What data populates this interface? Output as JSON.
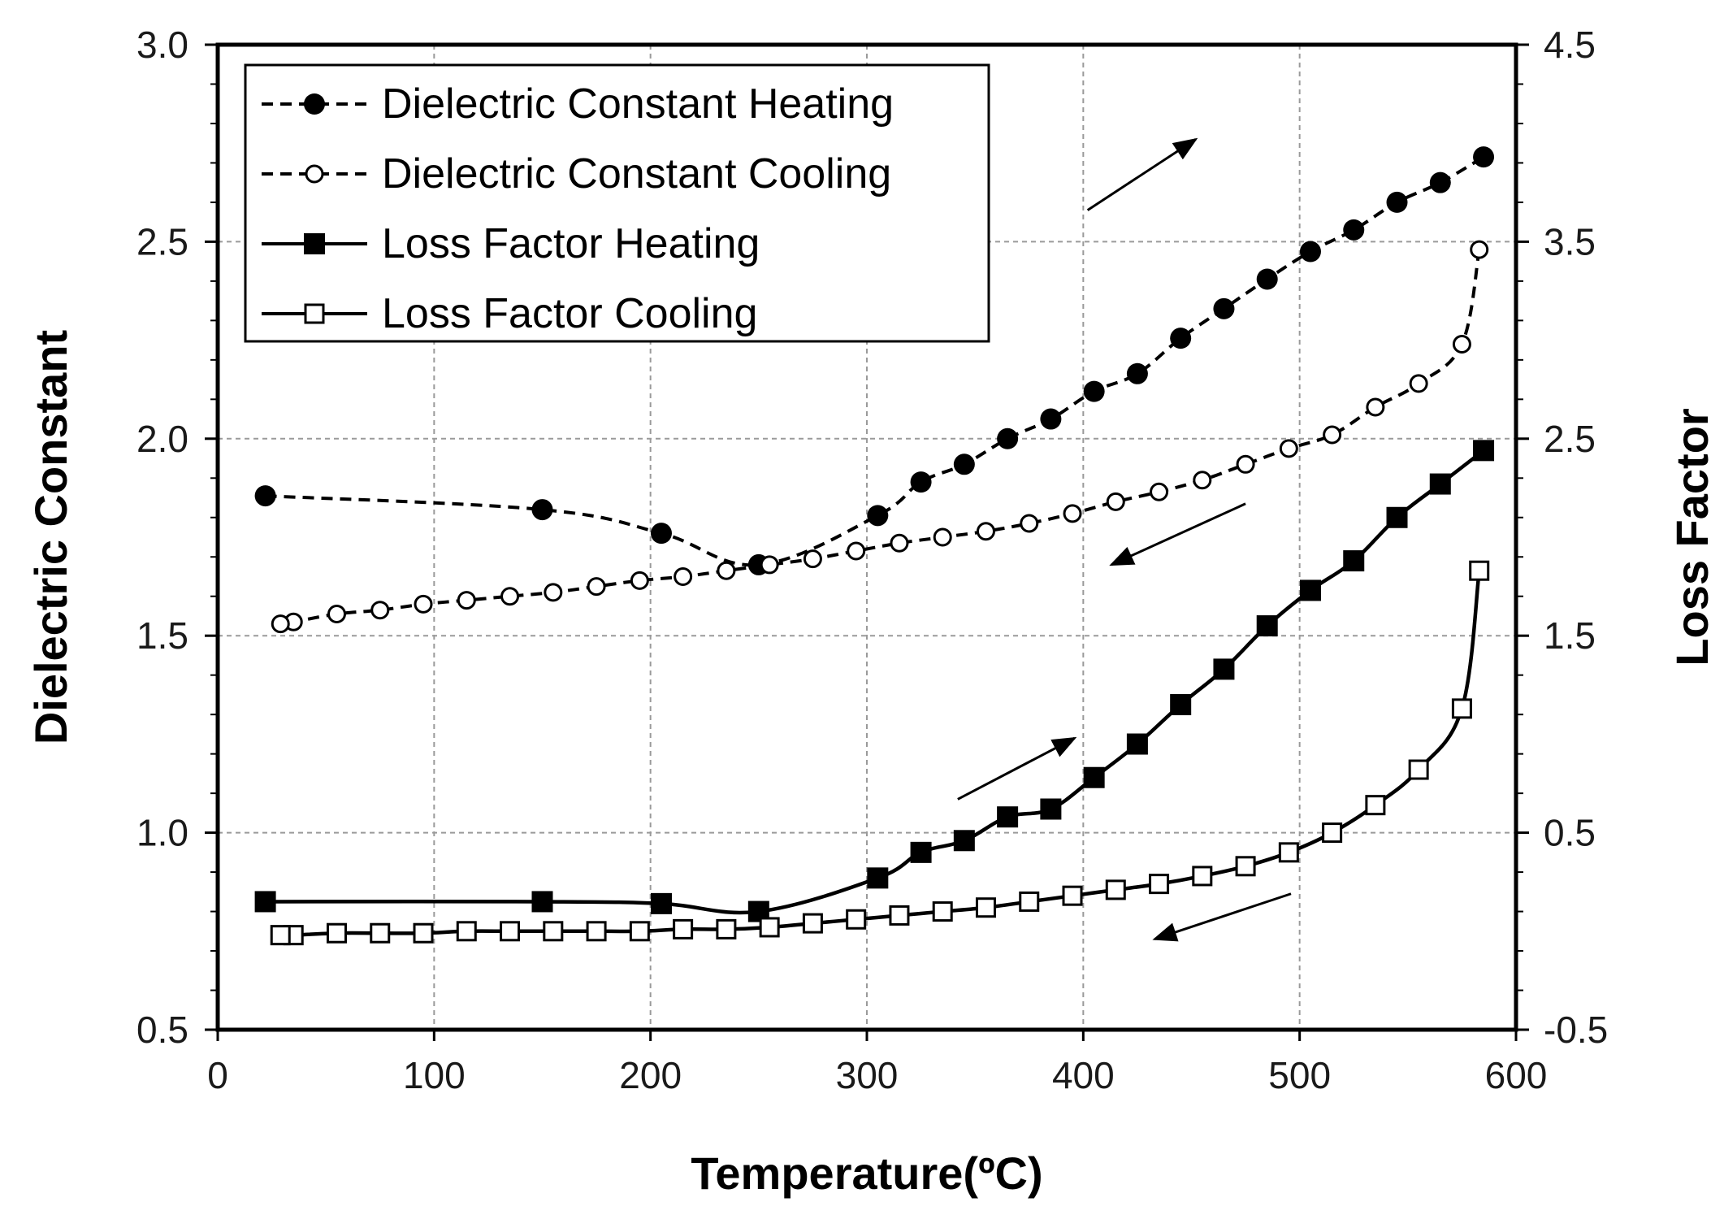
{
  "chart_data": {
    "type": "line",
    "xlabel": "Temperature(ºC)",
    "ylabel": "Dielectric Constant",
    "y2label": "Loss Factor",
    "xlim": [
      0,
      600
    ],
    "ylim": [
      0.5,
      3.0
    ],
    "y2lim": [
      -0.5,
      4.5
    ],
    "grid": true,
    "legend_position": "top-left",
    "x_ticks": [
      "0",
      "100",
      "200",
      "300",
      "400",
      "500",
      "600"
    ],
    "y_ticks": [
      "0.5",
      "1.0",
      "1.5",
      "2.0",
      "2.5",
      "3.0"
    ],
    "y2_ticks": [
      "-0.5",
      "0.5",
      "1.5",
      "2.5",
      "3.5",
      "4.5"
    ],
    "series": [
      {
        "name": "Dielectric Constant Heating",
        "axis": "left",
        "line": "dashed",
        "marker": "filled-circle",
        "points": [
          [
            22,
            1.855
          ],
          [
            150,
            1.82
          ],
          [
            205,
            1.76
          ],
          [
            250,
            1.68
          ],
          [
            305,
            1.805
          ],
          [
            325,
            1.89
          ],
          [
            345,
            1.935
          ],
          [
            365,
            2.0
          ],
          [
            385,
            2.05
          ],
          [
            405,
            2.12
          ],
          [
            425,
            2.165
          ],
          [
            445,
            2.255
          ],
          [
            465,
            2.33
          ],
          [
            485,
            2.405
          ],
          [
            505,
            2.475
          ],
          [
            525,
            2.53
          ],
          [
            545,
            2.6
          ],
          [
            565,
            2.65
          ],
          [
            585,
            2.715
          ]
        ]
      },
      {
        "name": "Dielectric Constant Cooling",
        "axis": "left",
        "line": "dashed",
        "marker": "open-circle",
        "points": [
          [
            583,
            2.48
          ],
          [
            575,
            2.24
          ],
          [
            555,
            2.14
          ],
          [
            535,
            2.08
          ],
          [
            515,
            2.01
          ],
          [
            495,
            1.975
          ],
          [
            475,
            1.935
          ],
          [
            455,
            1.895
          ],
          [
            435,
            1.865
          ],
          [
            415,
            1.84
          ],
          [
            395,
            1.81
          ],
          [
            375,
            1.785
          ],
          [
            355,
            1.765
          ],
          [
            335,
            1.75
          ],
          [
            315,
            1.735
          ],
          [
            295,
            1.715
          ],
          [
            275,
            1.695
          ],
          [
            255,
            1.68
          ],
          [
            235,
            1.665
          ],
          [
            215,
            1.65
          ],
          [
            195,
            1.64
          ],
          [
            175,
            1.625
          ],
          [
            155,
            1.61
          ],
          [
            135,
            1.6
          ],
          [
            115,
            1.59
          ],
          [
            95,
            1.58
          ],
          [
            75,
            1.565
          ],
          [
            55,
            1.555
          ],
          [
            35,
            1.535
          ],
          [
            29,
            1.53
          ]
        ]
      },
      {
        "name": "Loss Factor Heating",
        "axis": "right",
        "line": "solid",
        "marker": "filled-square",
        "points": [
          [
            22,
            0.15
          ],
          [
            150,
            0.15
          ],
          [
            205,
            0.14
          ],
          [
            250,
            0.1
          ],
          [
            305,
            0.27
          ],
          [
            325,
            0.4
          ],
          [
            345,
            0.46
          ],
          [
            365,
            0.58
          ],
          [
            385,
            0.62
          ],
          [
            405,
            0.78
          ],
          [
            425,
            0.95
          ],
          [
            445,
            1.15
          ],
          [
            465,
            1.33
          ],
          [
            485,
            1.55
          ],
          [
            505,
            1.73
          ],
          [
            525,
            1.88
          ],
          [
            545,
            2.1
          ],
          [
            565,
            2.27
          ],
          [
            585,
            2.44
          ]
        ]
      },
      {
        "name": "Loss Factor Cooling",
        "axis": "right",
        "line": "solid",
        "marker": "open-square",
        "points": [
          [
            583,
            1.83
          ],
          [
            575,
            1.13
          ],
          [
            555,
            0.82
          ],
          [
            535,
            0.64
          ],
          [
            515,
            0.5
          ],
          [
            495,
            0.4
          ],
          [
            475,
            0.33
          ],
          [
            455,
            0.28
          ],
          [
            435,
            0.24
          ],
          [
            415,
            0.21
          ],
          [
            395,
            0.18
          ],
          [
            375,
            0.15
          ],
          [
            355,
            0.12
          ],
          [
            335,
            0.1
          ],
          [
            315,
            0.08
          ],
          [
            295,
            0.06
          ],
          [
            275,
            0.04
          ],
          [
            255,
            0.02
          ],
          [
            235,
            0.01
          ],
          [
            215,
            0.01
          ],
          [
            195,
            0.0
          ],
          [
            175,
            0.0
          ],
          [
            155,
            0.0
          ],
          [
            135,
            0.0
          ],
          [
            115,
            0.0
          ],
          [
            95,
            -0.01
          ],
          [
            75,
            -0.01
          ],
          [
            55,
            -0.01
          ],
          [
            35,
            -0.02
          ],
          [
            29,
            -0.02
          ]
        ]
      }
    ],
    "annotations": [
      {
        "type": "arrow",
        "from": [
          402,
          2.58
        ],
        "to": [
          452,
          2.76
        ],
        "axis": "left"
      },
      {
        "type": "arrow",
        "from": [
          475,
          1.835
        ],
        "to": [
          413,
          1.68
        ],
        "axis": "left"
      },
      {
        "type": "arrow",
        "from": [
          342,
          0.67
        ],
        "to": [
          396,
          0.98
        ],
        "axis": "right"
      },
      {
        "type": "arrow",
        "from": [
          496,
          0.19
        ],
        "to": [
          433,
          -0.04
        ],
        "axis": "right"
      }
    ]
  }
}
